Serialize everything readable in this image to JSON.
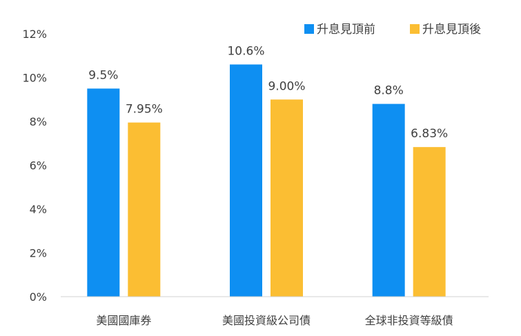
{
  "chart_data": {
    "type": "bar",
    "categories": [
      "美國國庫券",
      "美國投資級公司債",
      "全球非投資等級債"
    ],
    "series": [
      {
        "name": "升息見頂前",
        "values": [
          9.5,
          10.6,
          8.8
        ],
        "labels": [
          "9.5%",
          "10.6%",
          "8.8%"
        ],
        "color": "#0e8ff2"
      },
      {
        "name": "升息見頂後",
        "values": [
          7.95,
          9.0,
          6.83
        ],
        "labels": [
          "7.95%",
          "9.00%",
          "6.83%"
        ],
        "color": "#fbbe33"
      }
    ],
    "y_ticks": [
      "0%",
      "2%",
      "4%",
      "6%",
      "8%",
      "10%",
      "12%"
    ],
    "ylim": [
      0,
      12
    ],
    "legend_position": "top-right",
    "grid": false
  }
}
